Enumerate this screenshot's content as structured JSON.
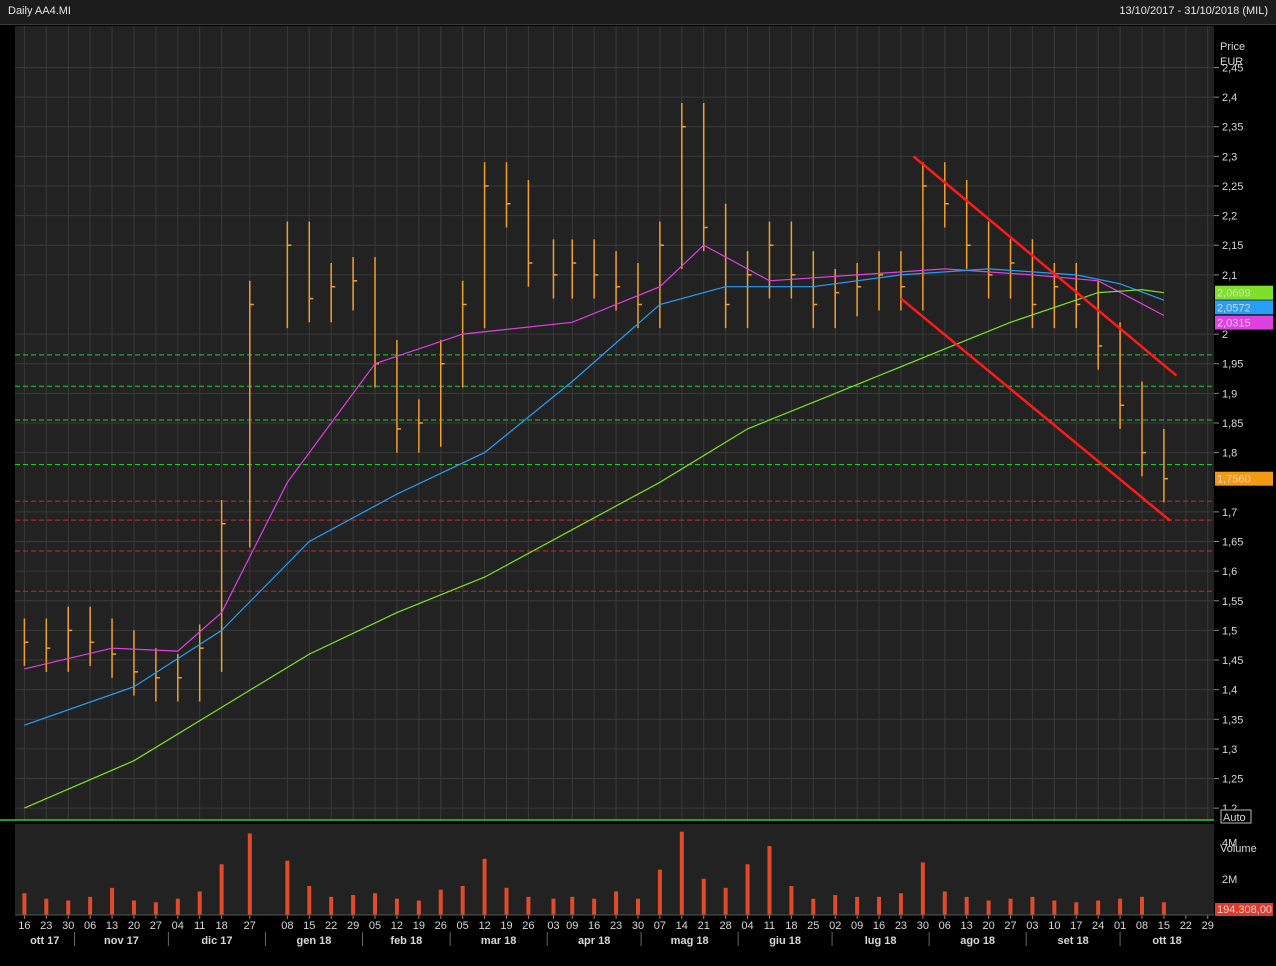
{
  "header": {
    "title": "Daily AA4.MI",
    "range": "13/10/2017 - 31/10/2018 (MIL)"
  },
  "colors": {
    "background": "#222222",
    "grid": "#3a3a3a",
    "bars": "#f0a030",
    "ma_short": "#e040e0",
    "ma_mid": "#2a9df4",
    "ma_long": "#7fe02a",
    "support": "#22cc22",
    "resistance": "#dd2222",
    "channel": "#ff1a1a",
    "volume_bar": "#e24a2a"
  },
  "chart_data": {
    "type": "line",
    "subtype": "ohlc-price-chart-with-volume",
    "price_axis": {
      "label": "Price",
      "unit": "EUR",
      "ylim": [
        1.18,
        2.52
      ],
      "ticks": [
        "2,45",
        "2,4",
        "2,35",
        "2,3",
        "2,25",
        "2,2",
        "2,15",
        "2,1",
        "2",
        "1,95",
        "1,9",
        "1,85",
        "1,8",
        "1,7",
        "1,65",
        "1,6",
        "1,55",
        "1,5",
        "1,45",
        "1,4",
        "1,35",
        "1,3",
        "1,25",
        "1,2"
      ],
      "mode_label": "Auto",
      "last_price_label": "1,7560",
      "ma_labels": [
        "2,0699",
        "2,0572",
        "2,0315"
      ]
    },
    "x_axis": {
      "days": [
        "16",
        "23",
        "30",
        "06",
        "13",
        "20",
        "27",
        "04",
        "11",
        "18",
        "27",
        "08",
        "15",
        "22",
        "29",
        "05",
        "12",
        "19",
        "26",
        "05",
        "12",
        "19",
        "26",
        "03",
        "09",
        "16",
        "23",
        "30",
        "07",
        "14",
        "21",
        "28",
        "04",
        "11",
        "18",
        "25",
        "02",
        "09",
        "16",
        "23",
        "30",
        "06",
        "13",
        "20",
        "27",
        "03",
        "10",
        "17",
        "24",
        "01",
        "08",
        "15",
        "22",
        "29"
      ],
      "months": [
        "ott 17",
        "nov 17",
        "dic 17",
        "gen 18",
        "feb 18",
        "mar 18",
        "apr 18",
        "mag 18",
        "giu 18",
        "lug 18",
        "ago 18",
        "set 18",
        "ott 18"
      ]
    },
    "horizontal_levels": {
      "support_dashed": [
        1.965,
        1.912,
        1.855,
        1.78
      ],
      "resistance_dashed": [
        1.718,
        1.686,
        1.634,
        1.566
      ]
    },
    "channel_lines": [
      {
        "from": [
          "2018-07-27",
          2.3
        ],
        "to": [
          "2018-10-19",
          1.93
        ]
      },
      {
        "from": [
          "2018-07-23",
          2.06
        ],
        "to": [
          "2018-10-17",
          1.685
        ]
      }
    ],
    "series": [
      {
        "name": "price_close_weekly",
        "x": [
          "2017-10-16",
          "2017-10-23",
          "2017-10-30",
          "2017-11-06",
          "2017-11-13",
          "2017-11-20",
          "2017-11-27",
          "2017-12-04",
          "2017-12-11",
          "2017-12-18",
          "2017-12-27",
          "2018-01-08",
          "2018-01-15",
          "2018-01-22",
          "2018-01-29",
          "2018-02-05",
          "2018-02-12",
          "2018-02-19",
          "2018-02-26",
          "2018-03-05",
          "2018-03-12",
          "2018-03-19",
          "2018-03-26",
          "2018-04-03",
          "2018-04-09",
          "2018-04-16",
          "2018-04-23",
          "2018-04-30",
          "2018-05-07",
          "2018-05-14",
          "2018-05-21",
          "2018-05-28",
          "2018-06-04",
          "2018-06-11",
          "2018-06-18",
          "2018-06-25",
          "2018-07-02",
          "2018-07-09",
          "2018-07-16",
          "2018-07-23",
          "2018-07-30",
          "2018-08-06",
          "2018-08-13",
          "2018-08-20",
          "2018-08-27",
          "2018-09-03",
          "2018-09-10",
          "2018-09-17",
          "2018-09-24",
          "2018-10-01",
          "2018-10-08",
          "2018-10-15"
        ],
        "values": [
          1.48,
          1.47,
          1.5,
          1.48,
          1.46,
          1.43,
          1.42,
          1.42,
          1.47,
          1.68,
          2.05,
          2.15,
          2.06,
          2.08,
          2.09,
          1.95,
          1.84,
          1.85,
          1.95,
          2.05,
          2.25,
          2.22,
          2.12,
          2.1,
          2.12,
          2.1,
          2.08,
          2.05,
          2.15,
          2.35,
          2.18,
          2.05,
          2.1,
          2.15,
          2.1,
          2.05,
          2.07,
          2.08,
          2.1,
          2.08,
          2.25,
          2.22,
          2.15,
          2.1,
          2.12,
          2.05,
          2.08,
          2.05,
          1.98,
          1.88,
          1.8,
          1.756
        ]
      },
      {
        "name": "volume_weekly",
        "x": [
          "2017-10-16",
          "2017-10-23",
          "2017-10-30",
          "2017-11-06",
          "2017-11-13",
          "2017-11-20",
          "2017-11-27",
          "2017-12-04",
          "2017-12-11",
          "2017-12-18",
          "2017-12-27",
          "2018-01-08",
          "2018-01-15",
          "2018-01-22",
          "2018-01-29",
          "2018-02-05",
          "2018-02-12",
          "2018-02-19",
          "2018-02-26",
          "2018-03-05",
          "2018-03-12",
          "2018-03-19",
          "2018-03-26",
          "2018-04-03",
          "2018-04-09",
          "2018-04-16",
          "2018-04-23",
          "2018-04-30",
          "2018-05-07",
          "2018-05-14",
          "2018-05-21",
          "2018-05-28",
          "2018-06-04",
          "2018-06-11",
          "2018-06-18",
          "2018-06-25",
          "2018-07-02",
          "2018-07-09",
          "2018-07-16",
          "2018-07-23",
          "2018-07-30",
          "2018-08-06",
          "2018-08-13",
          "2018-08-20",
          "2018-08-27",
          "2018-09-03",
          "2018-09-10",
          "2018-09-17",
          "2018-09-24",
          "2018-10-01",
          "2018-10-08",
          "2018-10-15"
        ],
        "values": [
          1.2,
          0.9,
          0.8,
          1.0,
          1.5,
          0.8,
          0.7,
          0.9,
          1.3,
          2.8,
          4.5,
          3.0,
          1.6,
          1.0,
          1.1,
          1.2,
          0.9,
          0.8,
          1.4,
          1.6,
          3.1,
          1.5,
          1.0,
          0.9,
          1.0,
          0.9,
          1.3,
          0.9,
          2.5,
          4.6,
          2.0,
          1.5,
          2.8,
          3.8,
          1.6,
          0.9,
          1.1,
          1.0,
          1.0,
          1.2,
          2.9,
          1.3,
          1.0,
          0.8,
          0.9,
          1.0,
          0.8,
          0.7,
          0.8,
          0.9,
          1.0,
          0.7
        ]
      },
      {
        "name": "ma_short",
        "x": [
          "2017-10-16",
          "2017-11-13",
          "2017-12-04",
          "2017-12-18",
          "2018-01-08",
          "2018-02-05",
          "2018-03-05",
          "2018-04-09",
          "2018-05-07",
          "2018-05-21",
          "2018-06-11",
          "2018-07-09",
          "2018-08-06",
          "2018-09-03",
          "2018-09-24",
          "2018-10-15"
        ],
        "values": [
          1.435,
          1.47,
          1.465,
          1.53,
          1.75,
          1.95,
          2.0,
          2.02,
          2.08,
          2.15,
          2.09,
          2.1,
          2.11,
          2.1,
          2.09,
          2.0315
        ]
      },
      {
        "name": "ma_mid",
        "x": [
          "2017-10-16",
          "2017-11-20",
          "2017-12-18",
          "2018-01-15",
          "2018-02-12",
          "2018-03-12",
          "2018-04-09",
          "2018-05-07",
          "2018-05-28",
          "2018-06-25",
          "2018-07-23",
          "2018-08-20",
          "2018-09-17",
          "2018-10-01",
          "2018-10-15"
        ],
        "values": [
          1.34,
          1.405,
          1.5,
          1.65,
          1.73,
          1.8,
          1.92,
          2.05,
          2.08,
          2.08,
          2.1,
          2.11,
          2.1,
          2.085,
          2.0572
        ]
      },
      {
        "name": "ma_long",
        "x": [
          "2017-10-16",
          "2017-11-20",
          "2017-12-18",
          "2018-01-15",
          "2018-02-12",
          "2018-03-12",
          "2018-04-09",
          "2018-05-07",
          "2018-06-04",
          "2018-07-02",
          "2018-07-30",
          "2018-08-27",
          "2018-09-24",
          "2018-10-08",
          "2018-10-15"
        ],
        "values": [
          1.2,
          1.28,
          1.37,
          1.46,
          1.53,
          1.59,
          1.67,
          1.75,
          1.84,
          1.9,
          1.96,
          2.02,
          2.07,
          2.075,
          2.0699
        ]
      }
    ],
    "volume_axis": {
      "label": "Volume",
      "ticks": [
        "4M",
        "2M"
      ],
      "last_value_label": "194.308,00"
    }
  }
}
